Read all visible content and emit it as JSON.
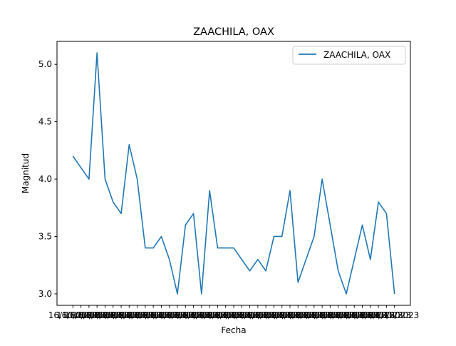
{
  "chart_data": {
    "type": "line",
    "title": "ZAACHILA, OAX",
    "xlabel": "Fecha",
    "ylabel": "Magnitud",
    "ylim": [
      2.9,
      5.2
    ],
    "yticks": [
      "3.0",
      "3.5",
      "4.0",
      "4.5",
      "5.0"
    ],
    "grid": false,
    "legend_placement": "top-right",
    "x_tick_label_text": "16/10/2023",
    "series": [
      {
        "name": "ZAACHILA, OAX",
        "color": "#1f77b4",
        "values": [
          4.2,
          4.1,
          4.0,
          5.1,
          4.0,
          3.8,
          3.7,
          4.3,
          4.0,
          3.4,
          3.4,
          3.5,
          3.3,
          3.0,
          3.6,
          3.7,
          3.0,
          3.9,
          3.4,
          3.4,
          3.4,
          3.3,
          3.2,
          3.3,
          3.2,
          3.5,
          3.5,
          3.9,
          3.1,
          3.3,
          3.5,
          4.0,
          3.6,
          3.2,
          3.0,
          3.3,
          3.6,
          3.3,
          3.8,
          3.7,
          3.0
        ]
      }
    ]
  }
}
